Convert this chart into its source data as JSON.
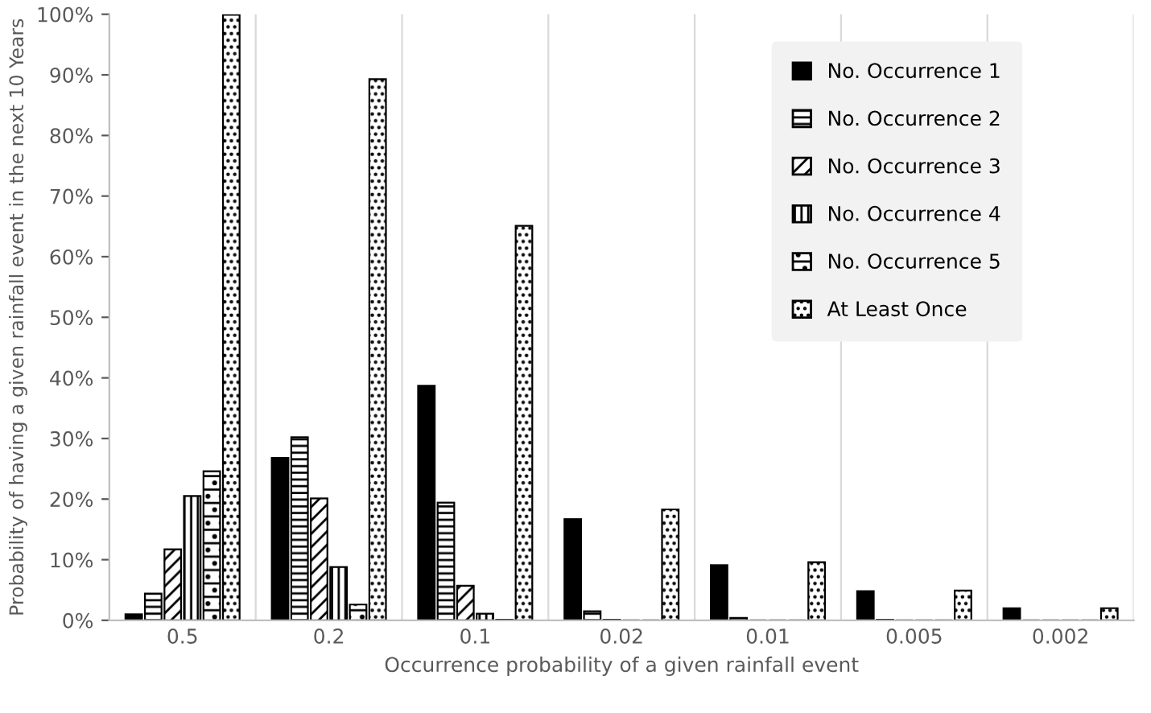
{
  "chart_data": {
    "type": "bar",
    "xlabel": "Occurrence probability of a given rainfall event",
    "ylabel": "Probability of having a given rainfall event in the next 10 Years",
    "categories": [
      "0.5",
      "0.2",
      "0.1",
      "0.02",
      "0.01",
      "0.005",
      "0.002"
    ],
    "series": [
      {
        "name": "No. Occurrence 1",
        "color": "#000000",
        "values": [
          1.0,
          26.8,
          38.7,
          16.7,
          9.1,
          4.8,
          2.0
        ]
      },
      {
        "name": "No. Occurrence 2",
        "color": "#000000",
        "values": [
          4.4,
          30.2,
          19.4,
          1.5,
          0.4,
          0.1,
          0.0
        ]
      },
      {
        "name": "No. Occurrence 3",
        "color": "#000000",
        "values": [
          11.7,
          20.1,
          5.7,
          0.1,
          0.0,
          0.0,
          0.0
        ]
      },
      {
        "name": "No. Occurrence 4",
        "color": "#000000",
        "values": [
          20.5,
          8.8,
          1.1,
          0.0,
          0.0,
          0.0,
          0.0
        ]
      },
      {
        "name": "No. Occurrence 5",
        "color": "#000000",
        "values": [
          24.6,
          2.6,
          0.1,
          0.0,
          0.0,
          0.0,
          0.0
        ]
      },
      {
        "name": "At Least Once",
        "color": "#000000",
        "values": [
          99.9,
          89.3,
          65.1,
          18.3,
          9.6,
          4.9,
          2.0
        ]
      }
    ],
    "ylim": [
      0,
      100
    ],
    "yticks": [
      {
        "value": 0,
        "label": "0%"
      },
      {
        "value": 10,
        "label": "10%"
      },
      {
        "value": 20,
        "label": "20%"
      },
      {
        "value": 30,
        "label": "30%"
      },
      {
        "value": 40,
        "label": "40%"
      },
      {
        "value": 50,
        "label": "50%"
      },
      {
        "value": 60,
        "label": "60%"
      },
      {
        "value": 70,
        "label": "70%"
      },
      {
        "value": 80,
        "label": "80%"
      },
      {
        "value": 90,
        "label": "90%"
      },
      {
        "value": 100,
        "label": "100%"
      }
    ],
    "grid": "x",
    "legend": "top right"
  }
}
